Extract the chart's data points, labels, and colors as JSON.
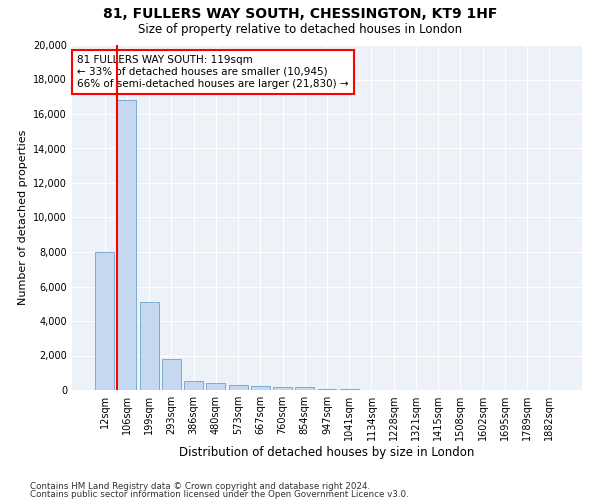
{
  "title": "81, FULLERS WAY SOUTH, CHESSINGTON, KT9 1HF",
  "subtitle": "Size of property relative to detached houses in London",
  "xlabel": "Distribution of detached houses by size in London",
  "ylabel": "Number of detached properties",
  "categories": [
    "12sqm",
    "106sqm",
    "199sqm",
    "293sqm",
    "386sqm",
    "480sqm",
    "573sqm",
    "667sqm",
    "760sqm",
    "854sqm",
    "947sqm",
    "1041sqm",
    "1134sqm",
    "1228sqm",
    "1321sqm",
    "1415sqm",
    "1508sqm",
    "1602sqm",
    "1695sqm",
    "1789sqm",
    "1882sqm"
  ],
  "values": [
    8000,
    16800,
    5100,
    1800,
    500,
    380,
    270,
    210,
    200,
    170,
    80,
    30,
    15,
    10,
    8,
    5,
    4,
    3,
    2,
    2,
    1
  ],
  "bar_color": "#c5d8ef",
  "bar_edgecolor": "#7aadd4",
  "annotation_text": "81 FULLERS WAY SOUTH: 119sqm\n← 33% of detached houses are smaller (10,945)\n66% of semi-detached houses are larger (21,830) →",
  "ylim": [
    0,
    20000
  ],
  "yticks": [
    0,
    2000,
    4000,
    6000,
    8000,
    10000,
    12000,
    14000,
    16000,
    18000,
    20000
  ],
  "background_color": "#ffffff",
  "plot_bg_color": "#edf2f9",
  "footer1": "Contains HM Land Registry data © Crown copyright and database right 2024.",
  "footer2": "Contains public sector information licensed under the Open Government Licence v3.0."
}
